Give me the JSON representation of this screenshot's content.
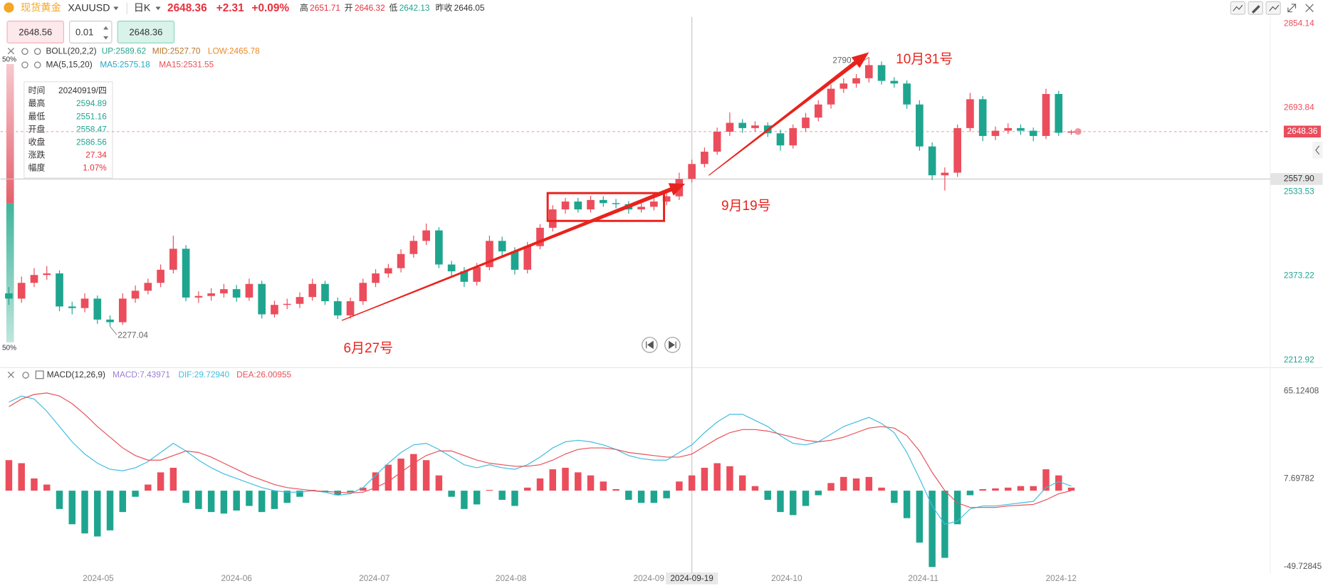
{
  "header": {
    "name": "现货黄金",
    "symbol": "XAUUSD",
    "period": "日K",
    "price": "2648.36",
    "change": "+2.31",
    "change_pct": "+0.09%",
    "high_label": "高",
    "high": "2651.71",
    "open_label": "开",
    "open": "2646.32",
    "low_label": "低",
    "low": "2642.13",
    "prev_label": "昨收",
    "prev": "2646.05"
  },
  "trade": {
    "sell": "2648.56",
    "lot": "0.01",
    "buy": "2648.36"
  },
  "chart_data": {
    "type": "candlestick",
    "indicators": {
      "boll": [
        "BOLL(20,2,2)",
        "UP:2589.62",
        "MID:2527.70",
        "LOW:2465.78"
      ],
      "ma": [
        "MA(5,15,20)",
        "MA5:2575.18",
        "MA15:2531.55"
      ]
    },
    "gauge_labels": [
      "50%",
      "50%"
    ],
    "tooltip": {
      "rows": [
        [
          "时间",
          "20240919/四"
        ],
        [
          "最高",
          "2594.89"
        ],
        [
          "最低",
          "2551.16"
        ],
        [
          "开盘",
          "2558.47"
        ],
        [
          "收盘",
          "2586.56"
        ],
        [
          "涨跌",
          "27.34"
        ],
        [
          "幅度",
          "1.07%"
        ]
      ]
    },
    "annotations": [
      "6月27号",
      "9月19号",
      "10月31号"
    ],
    "up_color": "#eb4d5c",
    "down_color": "#1fa58f",
    "categories": [
      null,
      null,
      null,
      null,
      null,
      null,
      null,
      null,
      null,
      null,
      null,
      null,
      null,
      null,
      null,
      null,
      null,
      null,
      null,
      null,
      null,
      null,
      null,
      null,
      null,
      null,
      null,
      null,
      null,
      null,
      null,
      null,
      null,
      null,
      null,
      null,
      null,
      null,
      null,
      null,
      null,
      null,
      null,
      null,
      null,
      null,
      null,
      null,
      null,
      null,
      null,
      null,
      null,
      null,
      "2024-09-19",
      null,
      null,
      null,
      null,
      null,
      null,
      null,
      null,
      null,
      null,
      null,
      null,
      null,
      null,
      null,
      null,
      null,
      null,
      null,
      null,
      null,
      null,
      null,
      null,
      null,
      null,
      null,
      null,
      null,
      null
    ],
    "ohlc": [
      [
        2340,
        2352,
        2318,
        2330
      ],
      [
        2330,
        2372,
        2322,
        2360
      ],
      [
        2360,
        2388,
        2352,
        2375
      ],
      [
        2375,
        2392,
        2366,
        2378
      ],
      [
        2378,
        2384,
        2306,
        2315
      ],
      [
        2315,
        2324,
        2300,
        2312
      ],
      [
        2312,
        2340,
        2304,
        2330
      ],
      [
        2330,
        2336,
        2282,
        2290
      ],
      [
        2290,
        2298,
        2277.04,
        2285
      ],
      [
        2285,
        2340,
        2280,
        2330
      ],
      [
        2330,
        2355,
        2322,
        2345
      ],
      [
        2345,
        2368,
        2338,
        2360
      ],
      [
        2360,
        2395,
        2352,
        2385
      ],
      [
        2385,
        2450,
        2378,
        2425
      ],
      [
        2425,
        2432,
        2325,
        2332
      ],
      [
        2332,
        2344,
        2322,
        2335
      ],
      [
        2335,
        2350,
        2326,
        2340
      ],
      [
        2340,
        2358,
        2332,
        2348
      ],
      [
        2348,
        2356,
        2324,
        2332
      ],
      [
        2332,
        2368,
        2326,
        2358
      ],
      [
        2358,
        2364,
        2292,
        2300
      ],
      [
        2300,
        2326,
        2294,
        2318
      ],
      [
        2318,
        2330,
        2310,
        2320
      ],
      [
        2320,
        2342,
        2312,
        2333
      ],
      [
        2333,
        2368,
        2326,
        2358
      ],
      [
        2358,
        2364,
        2318,
        2325
      ],
      [
        2325,
        2332,
        2291,
        2298
      ],
      [
        2298,
        2332,
        2292,
        2325
      ],
      [
        2325,
        2368,
        2318,
        2360
      ],
      [
        2360,
        2386,
        2352,
        2378
      ],
      [
        2378,
        2396,
        2370,
        2388
      ],
      [
        2388,
        2424,
        2380,
        2415
      ],
      [
        2415,
        2450,
        2408,
        2440
      ],
      [
        2440,
        2473,
        2432,
        2460
      ],
      [
        2460,
        2466,
        2388,
        2395
      ],
      [
        2395,
        2402,
        2374,
        2382
      ],
      [
        2382,
        2390,
        2352,
        2362
      ],
      [
        2362,
        2398,
        2355,
        2390
      ],
      [
        2390,
        2450,
        2384,
        2440
      ],
      [
        2440,
        2448,
        2412,
        2420
      ],
      [
        2420,
        2428,
        2376,
        2385
      ],
      [
        2385,
        2438,
        2378,
        2430
      ],
      [
        2430,
        2472,
        2424,
        2465
      ],
      [
        2465,
        2508,
        2458,
        2500
      ],
      [
        2500,
        2522,
        2492,
        2515
      ],
      [
        2515,
        2522,
        2494,
        2500
      ],
      [
        2500,
        2526,
        2494,
        2518
      ],
      [
        2518,
        2525,
        2505,
        2512
      ],
      [
        2512,
        2520,
        2502,
        2510
      ],
      [
        2510,
        2516,
        2492,
        2500
      ],
      [
        2500,
        2512,
        2494,
        2505
      ],
      [
        2505,
        2522,
        2498,
        2515
      ],
      [
        2515,
        2532,
        2508,
        2525
      ],
      [
        2525,
        2570,
        2518,
        2558
      ],
      [
        2558.47,
        2594.89,
        2551.16,
        2586.56
      ],
      [
        2586.56,
        2618,
        2580,
        2610
      ],
      [
        2610,
        2656,
        2604,
        2648
      ],
      [
        2648,
        2685,
        2640,
        2665
      ],
      [
        2665,
        2672,
        2646,
        2655
      ],
      [
        2655,
        2668,
        2648,
        2660
      ],
      [
        2660,
        2666,
        2638,
        2645
      ],
      [
        2645,
        2652,
        2612,
        2622
      ],
      [
        2622,
        2662,
        2616,
        2655
      ],
      [
        2655,
        2684,
        2648,
        2675
      ],
      [
        2675,
        2708,
        2668,
        2700
      ],
      [
        2700,
        2738,
        2692,
        2730
      ],
      [
        2730,
        2750,
        2722,
        2740
      ],
      [
        2740,
        2758,
        2732,
        2750
      ],
      [
        2750,
        2790.02,
        2742,
        2775
      ],
      [
        2775,
        2782,
        2738,
        2745
      ],
      [
        2745,
        2752,
        2732,
        2740
      ],
      [
        2740,
        2746,
        2692,
        2700
      ],
      [
        2700,
        2708,
        2612,
        2620
      ],
      [
        2620,
        2628,
        2556,
        2565
      ],
      [
        2565,
        2580,
        2536,
        2570
      ],
      [
        2570,
        2662,
        2562,
        2655
      ],
      [
        2655,
        2722,
        2648,
        2710
      ],
      [
        2710,
        2716,
        2630,
        2640
      ],
      [
        2640,
        2658,
        2632,
        2650
      ],
      [
        2650,
        2664,
        2644,
        2655
      ],
      [
        2655,
        2662,
        2642,
        2650
      ],
      [
        2650,
        2656,
        2630,
        2640
      ],
      [
        2640,
        2730,
        2634,
        2720
      ],
      [
        2720,
        2726,
        2640,
        2646.05
      ],
      [
        2646.32,
        2651.71,
        2642.13,
        2648.36
      ]
    ],
    "ylim": [
      2212.92,
      2854.14
    ],
    "yticks": [
      2212.92,
      2373.22,
      2533.53,
      2693.84,
      2854.14
    ],
    "xticks": [
      {
        "value": 7.07,
        "label": "2024-05"
      },
      {
        "value": 18,
        "label": "2024-06"
      },
      {
        "value": 28.9,
        "label": "2024-07"
      },
      {
        "value": 39.7,
        "label": "2024-08"
      },
      {
        "value": 50.6,
        "label": "2024-09"
      },
      {
        "value": 61.5,
        "label": "2024-10"
      },
      {
        "value": 72.3,
        "label": "2024-11"
      },
      {
        "value": 83.2,
        "label": "2024-12"
      }
    ],
    "crosshair_price": {
      "value": 2557.9,
      "label": "2557.90"
    },
    "macd": {
      "title": "MACD(12,26,9)",
      "legend": [
        {
          "text": "MACD:7.43971",
          "color": "#9b7fd4"
        },
        {
          "text": "DIF:29.72940",
          "color": "#41bde0"
        },
        {
          "text": "DEA:26.00955",
          "color": "#e8515a"
        }
      ],
      "ylim": [
        -49.72845,
        65.12408
      ],
      "yticks": [
        -49.72845,
        7.69782,
        65.12408
      ],
      "hist": [
        20,
        18,
        8,
        4,
        -12,
        -22,
        -28,
        -30,
        -26,
        -14,
        -4,
        4,
        12,
        15,
        -8,
        -12,
        -14,
        -15,
        -13,
        -10,
        -14,
        -12,
        -8,
        -4,
        0.5,
        -1,
        -3,
        -1,
        2,
        12,
        17,
        21,
        24,
        20,
        10,
        -4,
        -12,
        -9,
        0.5,
        -6,
        -10,
        2,
        8,
        14,
        15,
        12,
        10,
        6,
        1,
        -6,
        -8,
        -8,
        -5,
        6,
        10,
        15,
        18,
        16,
        10,
        3,
        -6,
        -14,
        -16,
        -10,
        -3,
        5,
        9,
        8,
        9,
        2,
        -8,
        -18,
        -34,
        -50,
        -44,
        -22,
        -3,
        1,
        1.5,
        2,
        3,
        3,
        14,
        10,
        2
      ],
      "lines": [
        {
          "name": "DIF",
          "color": "#41bde0",
          "values": [
            58,
            62,
            60,
            52,
            42,
            32,
            24,
            18,
            14,
            13,
            15,
            19,
            25,
            31,
            26,
            20,
            15,
            11,
            8,
            5,
            2,
            0,
            -1,
            -1,
            0,
            -1,
            -3,
            -2,
            2,
            10,
            18,
            25,
            30,
            31,
            27,
            22,
            17,
            15,
            17,
            15,
            14,
            17,
            22,
            28,
            32,
            33,
            32,
            30,
            27,
            23,
            21,
            20,
            20,
            25,
            30,
            38,
            45,
            50,
            50,
            46,
            42,
            36,
            31,
            30,
            32,
            37,
            42,
            45,
            48,
            44,
            38,
            25,
            8,
            -10,
            -22,
            -20,
            -12,
            -10,
            -10,
            -9,
            -8,
            -7,
            2,
            6,
            3
          ]
        },
        {
          "name": "DEA",
          "color": "#e8515a",
          "values": [
            55,
            60,
            63,
            64,
            62,
            57,
            50,
            42,
            35,
            28,
            23,
            20,
            20,
            23,
            26,
            25,
            22,
            18,
            14,
            10,
            7,
            4,
            2,
            1,
            0,
            -0.5,
            -1,
            -1.5,
            -1,
            2,
            6,
            12,
            18,
            23,
            26,
            26,
            23,
            20,
            18,
            17,
            16,
            16,
            17,
            20,
            24,
            27,
            28,
            28,
            27,
            25,
            24,
            23,
            22,
            22,
            24,
            29,
            34,
            38,
            40,
            40,
            39,
            37,
            35,
            33,
            32,
            33,
            35,
            38,
            41,
            42,
            41,
            36,
            26,
            12,
            0,
            -8,
            -11,
            -11,
            -11,
            -10,
            -9.5,
            -9,
            -6,
            -2,
            0
          ]
        }
      ]
    }
  }
}
